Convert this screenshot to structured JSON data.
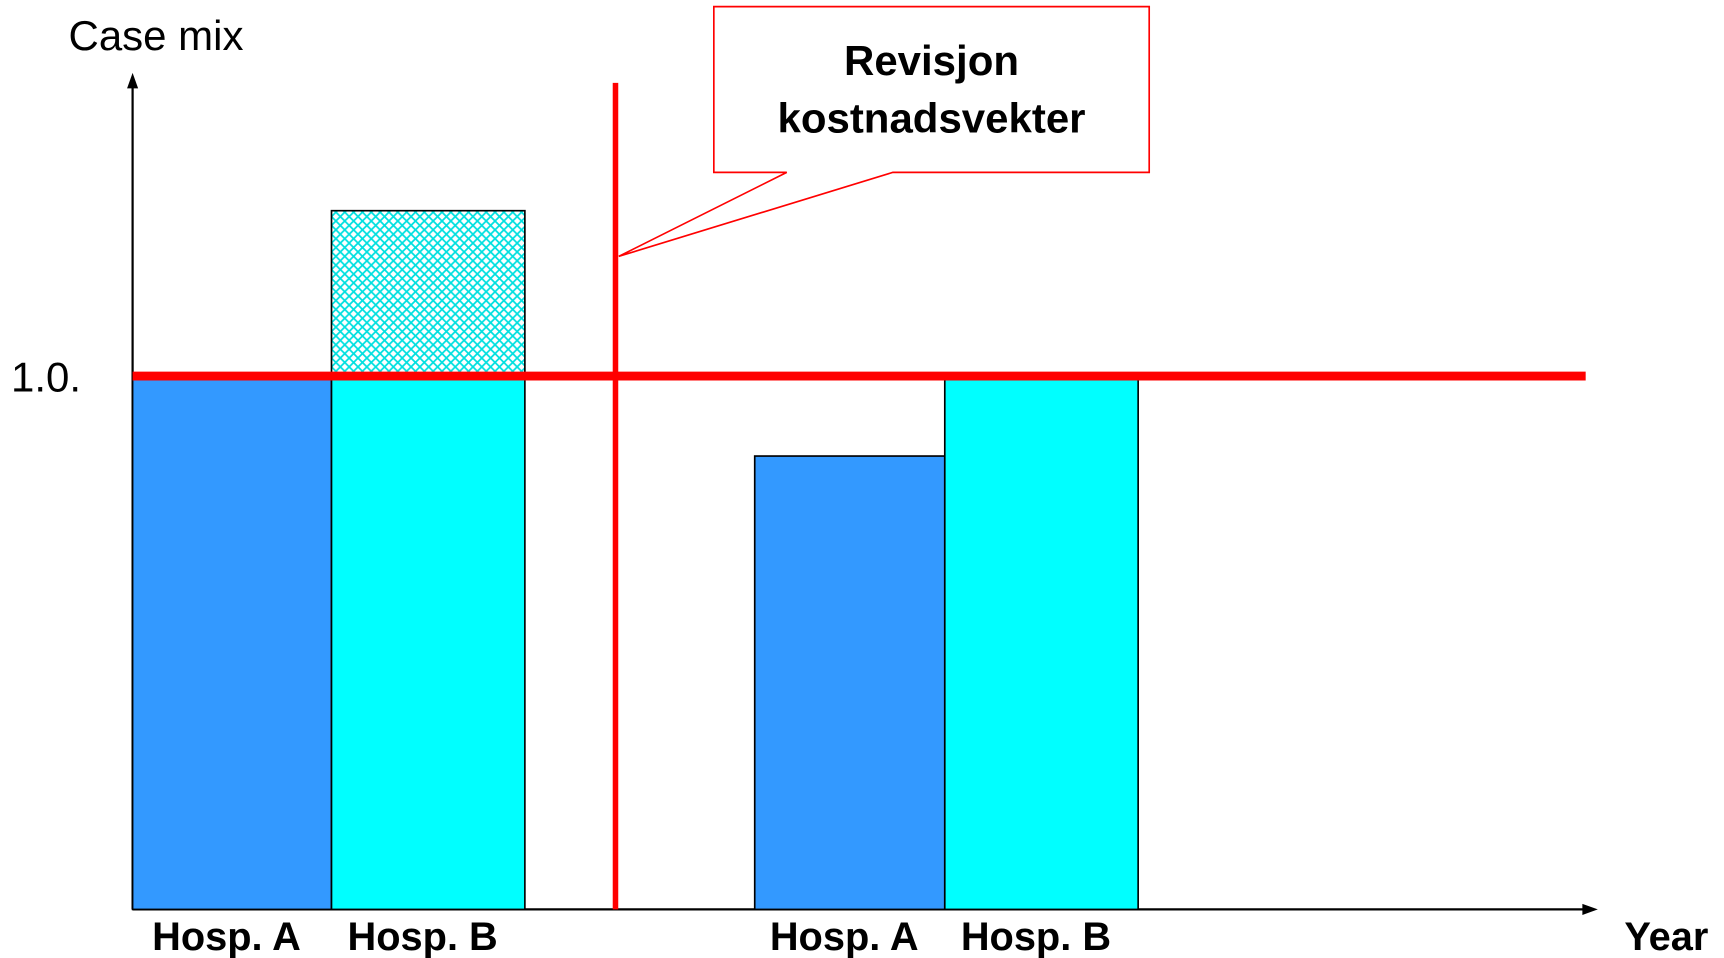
{
  "chart_data": {
    "type": "bar",
    "y_label": "Case mix",
    "x_label": "Year",
    "annotation": [
      "Revisjon",
      "kostnadsvekter"
    ],
    "categories": [
      "Hosp. A",
      "Hosp. B",
      "Hosp. A",
      "Hosp. B"
    ],
    "values": [
      1.0,
      1.0,
      0.85,
      1.0
    ],
    "colors": [
      "#3399ff",
      "#00ffff",
      "#3399ff",
      "#00ffff"
    ],
    "extra": {
      "values": [
        null,
        0.31,
        null,
        null
      ],
      "color": "#00e5e5",
      "pattern": "crosshatch"
    },
    "ylim": [
      0,
      1.56
    ],
    "yticks": [
      {
        "value": 1.0,
        "label": "1.0."
      }
    ],
    "reference_color": "#ff0000"
  }
}
